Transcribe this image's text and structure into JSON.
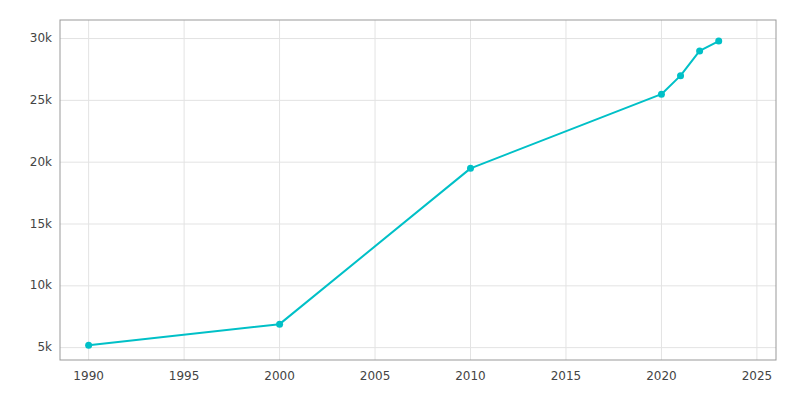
{
  "chart_data": {
    "type": "line",
    "x": [
      1990,
      2000,
      2010,
      2020,
      2021,
      2022,
      2023
    ],
    "values": [
      5200,
      6900,
      19500,
      25500,
      27000,
      29000,
      29800
    ],
    "color": "#00c0c7",
    "marker": "circle",
    "xlim": [
      1988.5,
      2026
    ],
    "ylim": [
      4000,
      31500
    ],
    "xticks": [
      1990,
      1995,
      2000,
      2005,
      2010,
      2015,
      2020,
      2025
    ],
    "yticks": [
      {
        "value": 5000,
        "label": "5k"
      },
      {
        "value": 10000,
        "label": "10k"
      },
      {
        "value": 15000,
        "label": "15k"
      },
      {
        "value": 20000,
        "label": "20k"
      },
      {
        "value": 25000,
        "label": "25k"
      },
      {
        "value": 30000,
        "label": "30k"
      }
    ],
    "grid": true
  }
}
